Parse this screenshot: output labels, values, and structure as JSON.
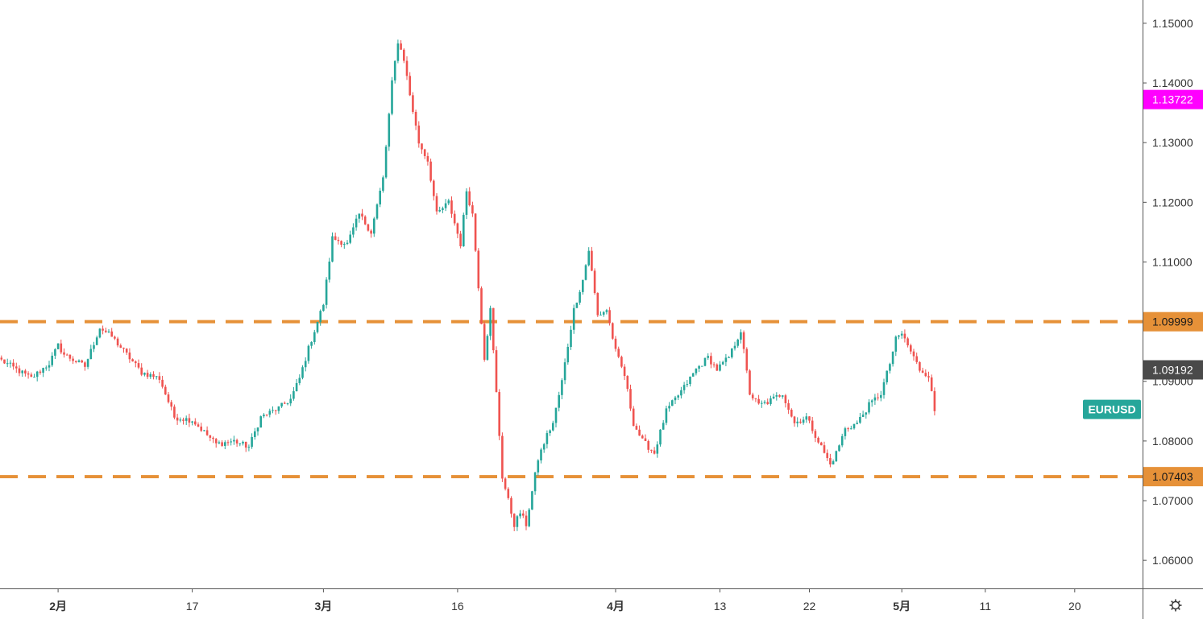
{
  "chart_data": {
    "type": "candlestick",
    "symbol": "EURUSD",
    "colors": {
      "up": "#26a69a",
      "down": "#ef5350",
      "level": "#e69138",
      "last_price_label": "#4a4a4a",
      "marker_label": "#ff00ff",
      "symbol_label": "#26a69a",
      "axis_text": "#333333",
      "axis_line": "#555555"
    },
    "y_range": [
      1.0553,
      1.1539
    ],
    "y_ticks": [
      "1.15000",
      "1.14000",
      "1.13000",
      "1.12000",
      "1.11000",
      "1.10000",
      "1.09000",
      "1.08000",
      "1.07000",
      "1.06000"
    ],
    "x_ticks": [
      {
        "label": "2月",
        "bold": true,
        "index": 19
      },
      {
        "label": "17",
        "bold": false,
        "index": 64
      },
      {
        "label": "3月",
        "bold": true,
        "index": 108
      },
      {
        "label": "16",
        "bold": false,
        "index": 153
      },
      {
        "label": "4月",
        "bold": true,
        "index": 206
      },
      {
        "label": "13",
        "bold": false,
        "index": 241
      },
      {
        "label": "22",
        "bold": false,
        "index": 271
      },
      {
        "label": "5月",
        "bold": true,
        "index": 302
      },
      {
        "label": "11",
        "bold": false,
        "index": 330
      },
      {
        "label": "20",
        "bold": false,
        "index": 360
      }
    ],
    "x_slots": 385,
    "levels": [
      {
        "value": 1.09999,
        "label": "1.09999"
      },
      {
        "value": 1.07403,
        "label": "1.07403"
      }
    ],
    "price_labels": [
      {
        "value": 1.13722,
        "label": "1.13722",
        "color_key": "marker_label"
      },
      {
        "value": 1.09192,
        "label": "1.09192",
        "color_key": "last_price_label"
      }
    ],
    "series_label": {
      "text": "EURUSD",
      "value": 1.0853
    },
    "anchors": [
      [
        0,
        1.0935
      ],
      [
        10,
        1.0905
      ],
      [
        16,
        1.093
      ],
      [
        19,
        1.096
      ],
      [
        21,
        1.0945
      ],
      [
        28,
        1.0925
      ],
      [
        33,
        1.099
      ],
      [
        37,
        1.0975
      ],
      [
        42,
        1.0945
      ],
      [
        47,
        1.0915
      ],
      [
        53,
        1.0905
      ],
      [
        58,
        1.084
      ],
      [
        64,
        1.0835
      ],
      [
        72,
        1.0795
      ],
      [
        78,
        1.08
      ],
      [
        83,
        1.079
      ],
      [
        87,
        1.084
      ],
      [
        93,
        1.0855
      ],
      [
        97,
        1.087
      ],
      [
        100,
        1.0905
      ],
      [
        103,
        1.0955
      ],
      [
        108,
        1.103
      ],
      [
        111,
        1.114
      ],
      [
        116,
        1.113
      ],
      [
        120,
        1.118
      ],
      [
        124,
        1.115
      ],
      [
        128,
        1.124
      ],
      [
        131,
        1.14
      ],
      [
        133,
        1.147
      ],
      [
        135,
        1.144
      ],
      [
        137,
        1.138
      ],
      [
        140,
        1.13
      ],
      [
        143,
        1.127
      ],
      [
        146,
        1.118
      ],
      [
        150,
        1.12
      ],
      [
        154,
        1.113
      ],
      [
        156,
        1.122
      ],
      [
        158,
        1.118
      ],
      [
        160,
        1.106
      ],
      [
        162,
        1.094
      ],
      [
        164,
        1.102
      ],
      [
        166,
        1.088
      ],
      [
        168,
        1.074
      ],
      [
        170,
        1.07
      ],
      [
        172,
        1.066
      ],
      [
        174,
        1.068
      ],
      [
        176,
        1.066
      ],
      [
        180,
        1.077
      ],
      [
        183,
        1.081
      ],
      [
        185,
        1.083
      ],
      [
        188,
        1.09
      ],
      [
        192,
        1.102
      ],
      [
        195,
        1.107
      ],
      [
        197,
        1.112
      ],
      [
        200,
        1.101
      ],
      [
        203,
        1.102
      ],
      [
        206,
        1.095
      ],
      [
        209,
        1.091
      ],
      [
        212,
        1.083
      ],
      [
        215,
        1.08
      ],
      [
        219,
        1.078
      ],
      [
        223,
        1.085
      ],
      [
        226,
        1.087
      ],
      [
        229,
        1.089
      ],
      [
        233,
        1.092
      ],
      [
        237,
        1.094
      ],
      [
        240,
        1.092
      ],
      [
        244,
        1.094
      ],
      [
        248,
        1.0985
      ],
      [
        251,
        1.088
      ],
      [
        254,
        1.086
      ],
      [
        257,
        1.0865
      ],
      [
        262,
        1.088
      ],
      [
        266,
        1.083
      ],
      [
        270,
        1.084
      ],
      [
        274,
        1.08
      ],
      [
        278,
        1.076
      ],
      [
        280,
        1.078
      ],
      [
        283,
        1.082
      ],
      [
        287,
        1.083
      ],
      [
        291,
        1.086
      ],
      [
        295,
        1.088
      ],
      [
        298,
        1.093
      ],
      [
        300,
        1.097
      ],
      [
        302,
        1.098
      ],
      [
        305,
        1.095
      ],
      [
        308,
        1.092
      ],
      [
        311,
        1.091
      ],
      [
        313,
        1.085
      ]
    ],
    "volatility": 0.00085
  }
}
